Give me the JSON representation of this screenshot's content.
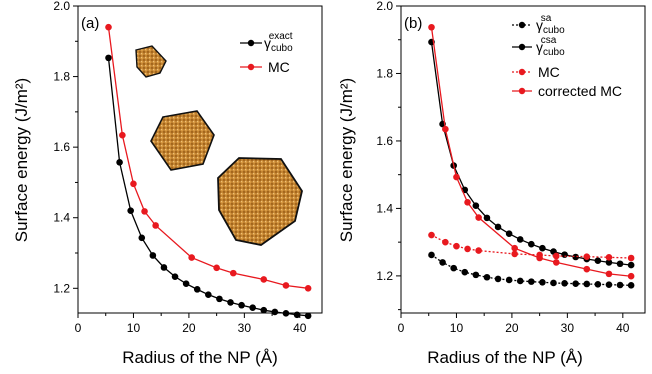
{
  "chart_data": [
    {
      "panel_label": "(a)",
      "type": "line",
      "xlabel": "Radius of the NP (Å)",
      "ylabel": "Surface energy (J/m²)",
      "xlim": [
        0,
        44
      ],
      "ylim": [
        1.13,
        2.0
      ],
      "xticks": [
        "0",
        "10",
        "20",
        "30",
        "40"
      ],
      "yticks": [
        "1.2",
        "1.4",
        "1.6",
        "1.8",
        "2.0"
      ],
      "legend_position": "top-right",
      "legend": [
        {
          "base": "γ",
          "sub": "cubo",
          "sup": "exact",
          "color": "#000000"
        },
        {
          "base": "MC",
          "sub": "",
          "sup": "",
          "color": "#e8191f"
        }
      ],
      "series": [
        {
          "name": "γ cubo exact",
          "color": "#000000",
          "dashed": false,
          "x": [
            5.5,
            7.5,
            9.5,
            11.5,
            13.5,
            15.5,
            17.5,
            19.5,
            21.5,
            23.5,
            25.5,
            27.5,
            29.5,
            31.5,
            33.5,
            35.5,
            37.5,
            39.5,
            41.5
          ],
          "y": [
            1.853,
            1.557,
            1.42,
            1.343,
            1.293,
            1.259,
            1.233,
            1.213,
            1.197,
            1.182,
            1.17,
            1.16,
            1.152,
            1.145,
            1.138,
            1.133,
            1.129,
            1.125,
            1.122
          ]
        },
        {
          "name": "MC",
          "color": "#e8191f",
          "dashed": false,
          "x": [
            5.5,
            8,
            10,
            12,
            14,
            20.5,
            25,
            28,
            33.5,
            37.5,
            41.5
          ],
          "y": [
            1.94,
            1.634,
            1.496,
            1.418,
            1.378,
            1.287,
            1.258,
            1.243,
            1.225,
            1.208,
            1.2
          ]
        }
      ],
      "nanoparticle_icons": [
        "small-cuboctahedron",
        "medium-cuboctahedron",
        "large-cuboctahedron"
      ]
    },
    {
      "panel_label": "(b)",
      "type": "line",
      "xlabel": "Radius of the NP (Å)",
      "ylabel": "Surface energy (J/m²)",
      "xlim": [
        0,
        44
      ],
      "ylim": [
        1.09,
        2.0
      ],
      "xticks": [
        "0",
        "10",
        "20",
        "30",
        "40"
      ],
      "yticks": [
        "1.2",
        "1.4",
        "1.6",
        "1.8",
        "2.0"
      ],
      "legend_position": "top-right",
      "legend": [
        {
          "base": "γ",
          "sub": "cubo",
          "sup": "sa",
          "color": "#000000",
          "dashed": true
        },
        {
          "base": "γ",
          "sub": "cubo",
          "sup": "csa",
          "color": "#000000",
          "dashed": false
        },
        {
          "base": "MC",
          "sub": "",
          "sup": "",
          "color": "#e8191f",
          "dashed": true
        },
        {
          "base": "corrected MC",
          "sub": "",
          "sup": "",
          "color": "#e8191f",
          "dashed": false
        }
      ],
      "series": [
        {
          "name": "γ cubo sa",
          "color": "#000000",
          "dashed": true,
          "x": [
            5.5,
            7.5,
            9.5,
            11.5,
            13.5,
            15.5,
            17.5,
            19.5,
            21.5,
            23.5,
            25.5,
            27.5,
            29.5,
            31.5,
            33.5,
            35.5,
            37.5,
            39.5,
            41.5
          ],
          "y": [
            1.262,
            1.24,
            1.223,
            1.211,
            1.203,
            1.196,
            1.191,
            1.188,
            1.185,
            1.183,
            1.181,
            1.179,
            1.178,
            1.177,
            1.176,
            1.175,
            1.174,
            1.173,
            1.172
          ]
        },
        {
          "name": "γ cubo csa",
          "color": "#000000",
          "dashed": false,
          "x": [
            5.5,
            7.5,
            9.5,
            11.5,
            13.5,
            15.5,
            17.5,
            19.5,
            21.5,
            23.5,
            25.5,
            27.5,
            29.5,
            31.5,
            33.5,
            35.5,
            37.5,
            39.5,
            41.5
          ],
          "y": [
            1.893,
            1.65,
            1.527,
            1.455,
            1.408,
            1.372,
            1.345,
            1.325,
            1.308,
            1.294,
            1.282,
            1.272,
            1.263,
            1.256,
            1.25,
            1.245,
            1.24,
            1.236,
            1.232
          ]
        },
        {
          "name": "MC",
          "color": "#e8191f",
          "dashed": true,
          "x": [
            5.5,
            8,
            10,
            12,
            14,
            20.5,
            25,
            28,
            33.5,
            37.5,
            41.5
          ],
          "y": [
            1.321,
            1.3,
            1.288,
            1.28,
            1.275,
            1.265,
            1.262,
            1.259,
            1.257,
            1.255,
            1.253
          ]
        },
        {
          "name": "corrected MC",
          "color": "#e8191f",
          "dashed": false,
          "x": [
            5.5,
            8,
            10,
            12,
            14,
            20.5,
            25,
            28,
            33.5,
            37.5,
            41.5
          ],
          "y": [
            1.937,
            1.635,
            1.493,
            1.418,
            1.373,
            1.282,
            1.253,
            1.24,
            1.22,
            1.206,
            1.199
          ]
        }
      ]
    }
  ]
}
